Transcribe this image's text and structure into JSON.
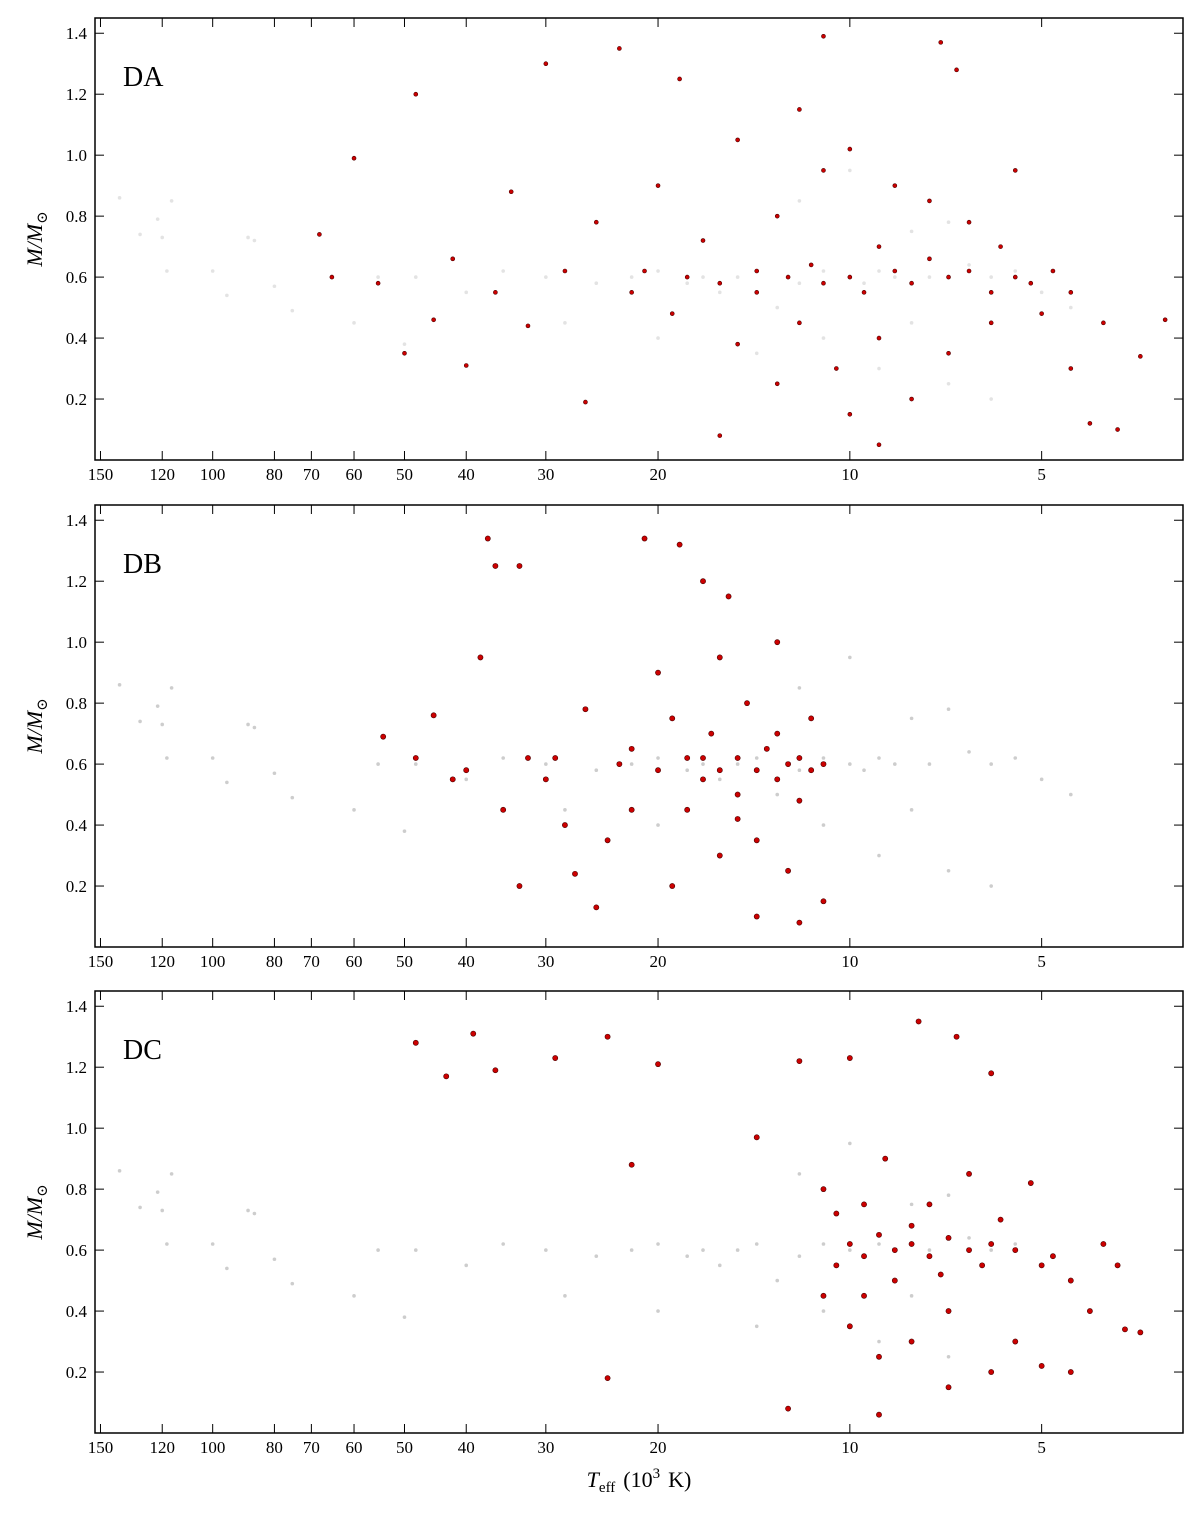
{
  "chart_data": [
    {
      "type": "scatter",
      "label": "DA",
      "ylabel": [
        "M/M",
        "⊙"
      ],
      "xscale": "log",
      "xlim": [
        153,
        3
      ],
      "ylim": [
        0,
        1.45
      ],
      "xticks": [
        150,
        120,
        100,
        80,
        70,
        60,
        50,
        40,
        30,
        20,
        10,
        5
      ],
      "yticks": [
        0.2,
        0.4,
        0.6,
        0.8,
        {
          "value": 1,
          "label": "1.0"
        },
        1.2,
        1.4
      ],
      "series": [
        {
          "color": "#c8c8c8",
          "x": [
            140,
            130,
            122,
            120,
            118,
            116,
            100,
            95,
            88,
            86,
            80,
            75,
            60,
            55,
            50,
            48,
            40,
            35,
            30,
            25,
            22,
            20,
            18,
            17,
            16,
            15,
            14,
            13,
            12,
            11,
            10,
            9.5,
            9,
            8.5,
            8,
            7.5,
            7,
            6.5,
            6,
            5.5,
            5,
            4.5,
            9,
            7,
            12,
            14,
            20,
            28,
            6,
            10,
            8,
            11
          ],
          "values": [
            0.86,
            0.74,
            0.79,
            0.73,
            0.62,
            0.85,
            0.62,
            0.54,
            0.73,
            0.72,
            0.57,
            0.49,
            0.45,
            0.6,
            0.38,
            0.6,
            0.55,
            0.62,
            0.6,
            0.58,
            0.6,
            0.62,
            0.58,
            0.6,
            0.55,
            0.6,
            0.62,
            0.5,
            0.58,
            0.62,
            0.6,
            0.58,
            0.62,
            0.6,
            0.75,
            0.6,
            0.78,
            0.64,
            0.6,
            0.62,
            0.55,
            0.5,
            0.3,
            0.25,
            0.85,
            0.35,
            0.4,
            0.45,
            0.2,
            0.95,
            0.45,
            0.4
          ]
        },
        {
          "color": "#cc0000",
          "x": [
            68,
            65,
            60,
            55,
            50,
            48,
            45,
            42,
            40,
            36,
            34,
            32,
            30,
            28,
            26,
            25,
            23,
            22,
            21,
            20,
            19,
            18,
            17,
            16,
            15,
            15,
            14,
            14,
            13,
            13,
            12.5,
            12,
            12,
            11.5,
            11,
            11,
            10.5,
            10,
            10,
            10,
            9.5,
            9,
            9,
            8.5,
            8.5,
            8,
            8,
            7.5,
            7.5,
            7,
            7,
            6.8,
            6.5,
            6.5,
            6,
            6,
            5.8,
            5.5,
            5.5,
            5.2,
            5,
            4.8,
            4.5,
            4.5,
            4.2,
            4,
            3.8,
            3.5,
            7.2,
            11,
            16,
            18.5,
            9,
            3.2
          ],
          "values": [
            0.74,
            0.6,
            0.99,
            0.58,
            0.35,
            1.2,
            0.46,
            0.66,
            0.31,
            0.55,
            0.88,
            0.44,
            1.3,
            0.62,
            0.19,
            0.78,
            1.35,
            0.55,
            0.62,
            0.9,
            0.48,
            0.6,
            0.72,
            0.58,
            1.05,
            0.38,
            0.62,
            0.55,
            0.8,
            0.25,
            0.6,
            1.15,
            0.45,
            0.64,
            0.58,
            0.95,
            0.3,
            0.6,
            1.02,
            0.15,
            0.55,
            0.7,
            0.4,
            0.62,
            0.9,
            0.58,
            0.2,
            0.66,
            0.85,
            0.6,
            0.35,
            1.28,
            0.62,
            0.78,
            0.55,
            0.45,
            0.7,
            0.6,
            0.95,
            0.58,
            0.48,
            0.62,
            0.3,
            0.55,
            0.12,
            0.45,
            0.1,
            0.34,
            1.37,
            1.39,
            0.08,
            1.25,
            0.05,
            0.46
          ]
        }
      ]
    },
    {
      "type": "scatter",
      "label": "DB",
      "ylabel": [
        "M/M",
        "⊙"
      ],
      "xscale": "log",
      "xlim": [
        153,
        3
      ],
      "ylim": [
        0,
        1.45
      ],
      "xticks": [
        150,
        120,
        100,
        80,
        70,
        60,
        50,
        40,
        30,
        20,
        10,
        5
      ],
      "yticks": [
        0.2,
        0.4,
        0.6,
        0.8,
        {
          "value": 1,
          "label": "1.0"
        },
        1.2,
        1.4
      ],
      "series": [
        {
          "color": "#c8c8c8",
          "x": [
            140,
            130,
            122,
            120,
            118,
            116,
            100,
            95,
            88,
            86,
            80,
            75,
            60,
            55,
            50,
            48,
            40,
            35,
            30,
            25,
            22,
            20,
            18,
            17,
            16,
            15,
            14,
            13,
            12,
            11,
            10,
            9.5,
            9,
            8.5,
            8,
            7.5,
            7,
            6.5,
            6,
            5.5,
            5,
            4.5,
            9,
            7,
            12,
            14,
            20,
            28,
            6,
            10,
            8,
            11
          ],
          "values": [
            0.86,
            0.74,
            0.79,
            0.73,
            0.62,
            0.85,
            0.62,
            0.54,
            0.73,
            0.72,
            0.57,
            0.49,
            0.45,
            0.6,
            0.38,
            0.6,
            0.55,
            0.62,
            0.6,
            0.58,
            0.6,
            0.62,
            0.58,
            0.6,
            0.55,
            0.6,
            0.62,
            0.5,
            0.58,
            0.62,
            0.6,
            0.58,
            0.62,
            0.6,
            0.75,
            0.6,
            0.78,
            0.64,
            0.6,
            0.62,
            0.55,
            0.5,
            0.3,
            0.25,
            0.85,
            0.35,
            0.4,
            0.45,
            0.2,
            0.95,
            0.45,
            0.4
          ]
        },
        {
          "color": "#cc0000",
          "x": [
            37,
            36,
            33,
            38,
            45,
            48,
            42,
            40,
            35,
            32,
            30,
            28,
            27,
            25,
            24,
            23,
            22,
            21,
            20,
            20,
            19,
            18.5,
            18,
            18,
            17,
            17,
            16.5,
            16,
            16,
            15.5,
            15,
            15,
            14.5,
            14,
            14,
            14,
            13.5,
            13,
            13,
            12.5,
            12.5,
            12,
            12,
            11.5,
            11.5,
            11,
            11,
            12,
            16,
            19,
            22,
            26,
            29,
            33,
            54,
            15,
            13,
            17
          ],
          "values": [
            1.34,
            1.25,
            1.25,
            0.95,
            0.76,
            0.62,
            0.55,
            0.58,
            0.45,
            0.62,
            0.55,
            0.4,
            0.24,
            0.13,
            0.35,
            0.6,
            0.65,
            1.34,
            0.58,
            0.9,
            0.2,
            1.32,
            0.62,
            0.45,
            1.2,
            0.55,
            0.7,
            0.58,
            0.3,
            1.15,
            0.62,
            0.5,
            0.8,
            0.58,
            0.1,
            0.35,
            0.65,
            0.55,
            1.0,
            0.6,
            0.25,
            0.62,
            0.48,
            0.58,
            0.75,
            0.6,
            0.15,
            0.08,
            0.95,
            0.75,
            0.45,
            0.78,
            0.62,
            0.2,
            0.69,
            0.42,
            0.7,
            0.62
          ]
        }
      ]
    },
    {
      "type": "scatter",
      "label": "DC",
      "ylabel": [
        "M/M",
        "⊙"
      ],
      "xlabel": [
        "T",
        "eff",
        "(10",
        "3",
        "K)"
      ],
      "xscale": "log",
      "xlim": [
        153,
        3
      ],
      "ylim": [
        0,
        1.45
      ],
      "xticks": [
        150,
        120,
        100,
        80,
        70,
        60,
        50,
        40,
        30,
        20,
        10,
        5
      ],
      "yticks": [
        0.2,
        0.4,
        0.6,
        0.8,
        {
          "value": 1,
          "label": "1.0"
        },
        1.2,
        1.4
      ],
      "series": [
        {
          "color": "#c8c8c8",
          "x": [
            140,
            130,
            122,
            120,
            118,
            116,
            100,
            95,
            88,
            86,
            80,
            75,
            60,
            55,
            50,
            48,
            40,
            35,
            30,
            25,
            22,
            20,
            18,
            17,
            16,
            15,
            14,
            13,
            12,
            11,
            10,
            9.5,
            9,
            8.5,
            8,
            7.5,
            7,
            6.5,
            6,
            5.5,
            5,
            4.5,
            9,
            7,
            12,
            14,
            20,
            28,
            6,
            10,
            8,
            11
          ],
          "values": [
            0.86,
            0.74,
            0.79,
            0.73,
            0.62,
            0.85,
            0.62,
            0.54,
            0.73,
            0.72,
            0.57,
            0.49,
            0.45,
            0.6,
            0.38,
            0.6,
            0.55,
            0.62,
            0.6,
            0.58,
            0.6,
            0.62,
            0.58,
            0.6,
            0.55,
            0.6,
            0.62,
            0.5,
            0.58,
            0.62,
            0.6,
            0.58,
            0.62,
            0.6,
            0.75,
            0.6,
            0.78,
            0.64,
            0.6,
            0.62,
            0.55,
            0.5,
            0.3,
            0.25,
            0.85,
            0.35,
            0.4,
            0.45,
            0.2,
            0.95,
            0.45,
            0.4
          ]
        },
        {
          "color": "#cc0000",
          "x": [
            48,
            43,
            39,
            36,
            29,
            24,
            24,
            22,
            20,
            14,
            12,
            11,
            10.5,
            10,
            10,
            10,
            9.5,
            9.5,
            9,
            9,
            8.8,
            8.5,
            8.5,
            8,
            8,
            7.8,
            7.5,
            7.5,
            7,
            7,
            7,
            6.8,
            6.5,
            6.5,
            6.2,
            6,
            6,
            6,
            5.8,
            5.5,
            5.5,
            5.2,
            5,
            5,
            4.8,
            4.5,
            4.5,
            4.2,
            4,
            3.8,
            3.7,
            3.5,
            9,
            12.5,
            11,
            9.5,
            8,
            10.5,
            7.2
          ],
          "values": [
            1.28,
            1.17,
            1.31,
            1.19,
            1.23,
            1.3,
            0.18,
            0.88,
            1.21,
            0.97,
            1.22,
            0.8,
            0.55,
            1.23,
            0.62,
            0.35,
            0.58,
            0.45,
            0.65,
            0.25,
            0.9,
            0.6,
            0.5,
            0.62,
            0.3,
            1.35,
            0.58,
            0.75,
            0.64,
            0.4,
            0.15,
            1.3,
            0.6,
            0.85,
            0.55,
            0.62,
            1.18,
            0.2,
            0.7,
            0.6,
            0.3,
            0.82,
            0.55,
            0.22,
            0.58,
            0.5,
            0.2,
            0.4,
            0.62,
            0.55,
            0.34,
            0.33,
            0.06,
            0.08,
            0.45,
            0.75,
            0.68,
            0.72,
            0.52
          ]
        }
      ]
    }
  ]
}
